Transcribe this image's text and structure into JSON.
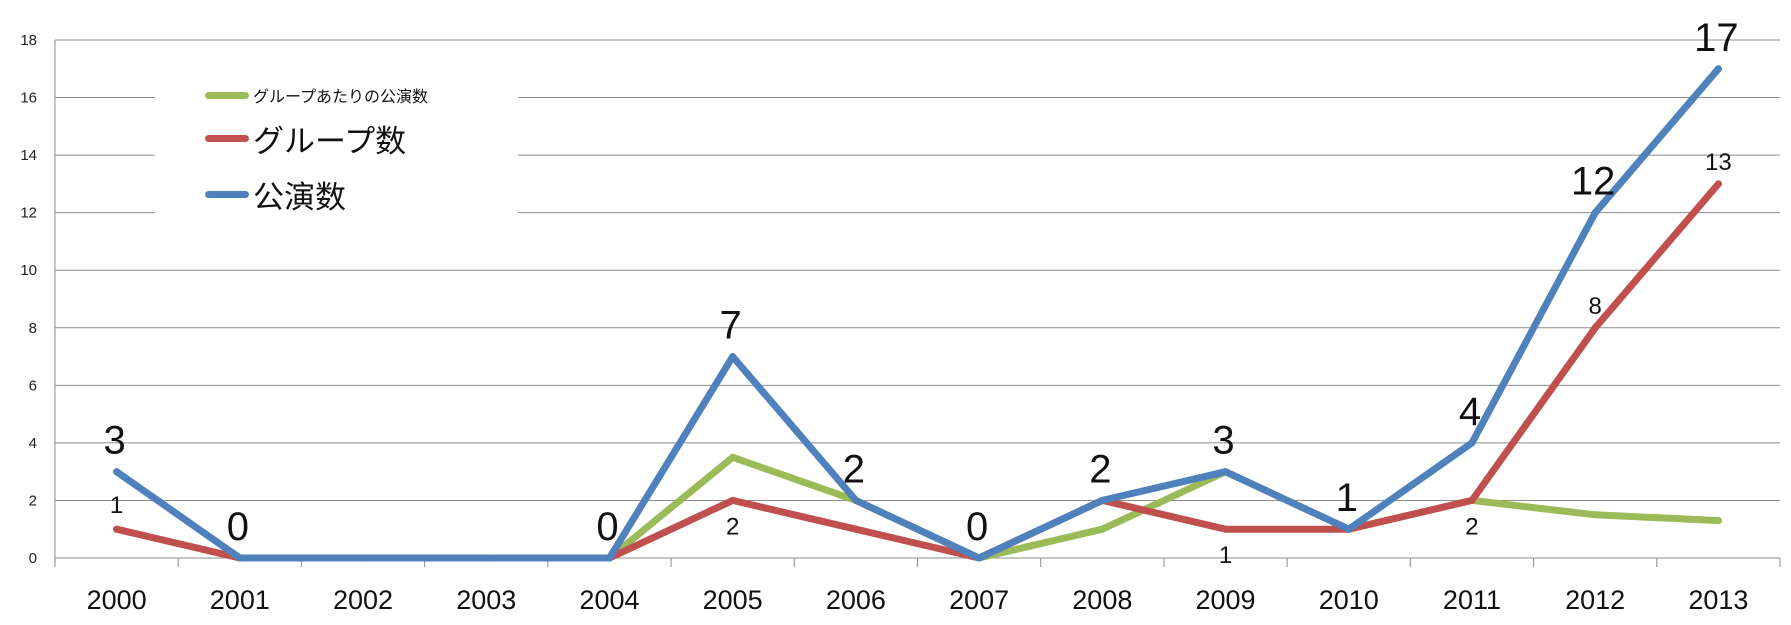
{
  "chart_data": {
    "type": "line",
    "categories": [
      "2000",
      "2001",
      "2002",
      "2003",
      "2004",
      "2005",
      "2006",
      "2007",
      "2008",
      "2009",
      "2010",
      "2011",
      "2012",
      "2013"
    ],
    "ylim": [
      0,
      18
    ],
    "yticks": [
      0,
      2,
      4,
      6,
      8,
      10,
      12,
      14,
      16,
      18
    ],
    "grid": true,
    "legend_position": "top-left",
    "series": [
      {
        "name": "グループあたりの公演数",
        "color": "#9BBB59",
        "values": [
          null,
          null,
          null,
          null,
          0,
          3.5,
          2,
          0,
          1,
          3,
          1,
          2,
          1.5,
          1.3
        ]
      },
      {
        "name": "グループ数",
        "color": "#C0504D",
        "values": [
          1,
          0,
          null,
          null,
          0,
          2,
          1,
          0,
          2,
          1,
          1,
          2,
          8,
          13
        ]
      },
      {
        "name": "公演数",
        "color": "#4F81BD",
        "values": [
          3,
          0,
          0,
          0,
          0,
          7,
          2,
          0,
          2,
          3,
          1,
          4,
          12,
          17
        ]
      }
    ],
    "data_labels": [
      {
        "series": "公演数",
        "category": "2000",
        "text": "3",
        "size": "large"
      },
      {
        "series": "公演数",
        "category": "2001",
        "text": "0",
        "size": "large"
      },
      {
        "series": "公演数",
        "category": "2004",
        "text": "0",
        "size": "large"
      },
      {
        "series": "公演数",
        "category": "2005",
        "text": "7",
        "size": "large"
      },
      {
        "series": "公演数",
        "category": "2006",
        "text": "2",
        "size": "large"
      },
      {
        "series": "公演数",
        "category": "2007",
        "text": "0",
        "size": "large"
      },
      {
        "series": "公演数",
        "category": "2008",
        "text": "2",
        "size": "large"
      },
      {
        "series": "公演数",
        "category": "2009",
        "text": "3",
        "size": "large"
      },
      {
        "series": "公演数",
        "category": "2010",
        "text": "1",
        "size": "large"
      },
      {
        "series": "公演数",
        "category": "2011",
        "text": "4",
        "size": "large"
      },
      {
        "series": "公演数",
        "category": "2012",
        "text": "12",
        "size": "large"
      },
      {
        "series": "公演数",
        "category": "2013",
        "text": "17",
        "size": "large"
      },
      {
        "series": "グループ数",
        "category": "2000",
        "text": "1",
        "size": "small"
      },
      {
        "series": "グループ数",
        "category": "2005",
        "text": "2",
        "size": "small"
      },
      {
        "series": "グループ数",
        "category": "2009",
        "text": "1",
        "size": "small"
      },
      {
        "series": "グループ数",
        "category": "2011",
        "text": "2",
        "size": "small"
      },
      {
        "series": "グループ数",
        "category": "2012",
        "text": "8",
        "size": "small"
      },
      {
        "series": "グループ数",
        "category": "2013",
        "text": "13",
        "size": "small"
      }
    ]
  }
}
